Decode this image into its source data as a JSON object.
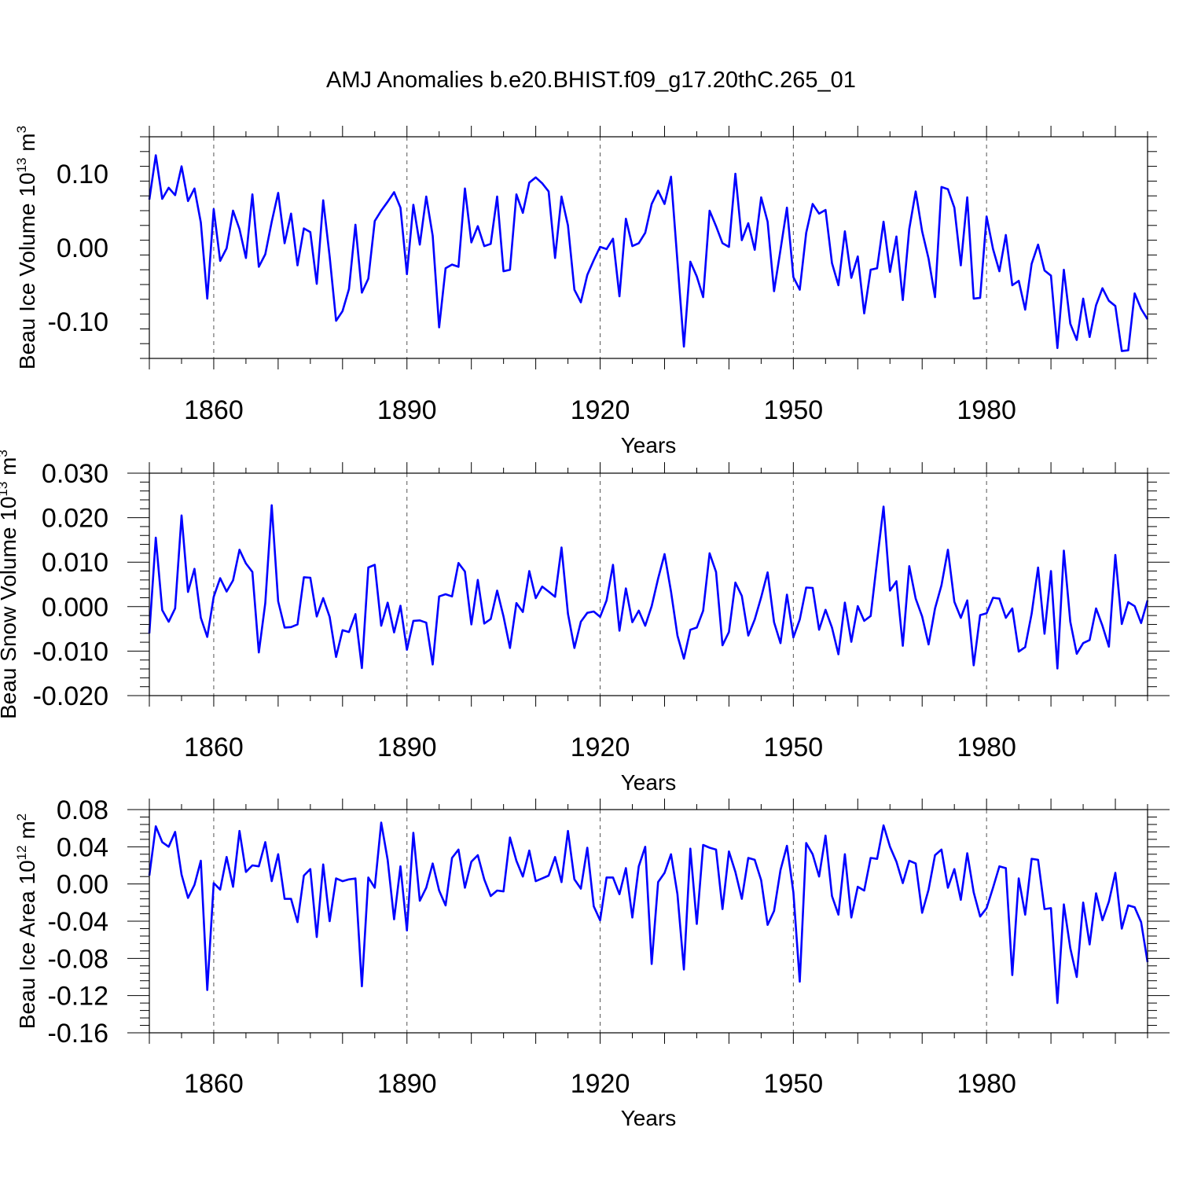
{
  "title": "AMJ Anomalies b.e20.BHIST.f09_g17.20thC.265_01",
  "chart_data": [
    {
      "type": "line",
      "title": "AMJ Anomalies b.e20.BHIST.f09_g17.20thC.265_01",
      "ylabel_prefix": "Beau Ice Volume 10",
      "ylabel_exp": "13",
      "ylabel_unit": " m",
      "ylabel_unit_exp": "3",
      "xlabel": "Years",
      "xlim": [
        1850,
        2005
      ],
      "ylim": [
        -0.15,
        0.15
      ],
      "x_ticks": [
        "1860",
        "1890",
        "1920",
        "1950",
        "1980"
      ],
      "y_ticks": [
        "0.10",
        "0.00",
        "-0.10"
      ],
      "color": "#0000ff",
      "start_year": 1850,
      "values": [
        0.065,
        0.125,
        0.066,
        0.081,
        0.071,
        0.11,
        0.063,
        0.08,
        0.034,
        -0.069,
        0.052,
        -0.018,
        -0.001,
        0.05,
        0.025,
        -0.014,
        0.072,
        -0.026,
        -0.009,
        0.035,
        0.074,
        0.006,
        0.046,
        -0.024,
        0.026,
        0.021,
        -0.049,
        0.064,
        -0.012,
        -0.099,
        -0.086,
        -0.056,
        0.031,
        -0.061,
        -0.042,
        0.036,
        0.05,
        0.062,
        0.075,
        0.054,
        -0.036,
        0.058,
        0.004,
        0.069,
        0.016,
        -0.108,
        -0.028,
        -0.023,
        -0.026,
        0.08,
        0.007,
        0.029,
        0.002,
        0.005,
        0.069,
        -0.032,
        -0.03,
        0.072,
        0.047,
        0.088,
        0.095,
        0.087,
        0.076,
        -0.014,
        0.069,
        0.03,
        -0.057,
        -0.074,
        -0.037,
        -0.017,
        0.001,
        -0.002,
        0.012,
        -0.066,
        0.039,
        0.002,
        0.006,
        0.02,
        0.059,
        0.077,
        0.059,
        0.096,
        -0.019,
        -0.134,
        -0.019,
        -0.039,
        -0.067,
        0.05,
        0.029,
        0.006,
        0.001,
        0.1,
        0.01,
        0.033,
        -0.003,
        0.068,
        0.035,
        -0.059,
        -0.003,
        0.054,
        -0.04,
        -0.057,
        0.02,
        0.059,
        0.046,
        0.051,
        -0.021,
        -0.051,
        0.022,
        -0.041,
        -0.012,
        -0.089,
        -0.03,
        -0.028,
        0.035,
        -0.033,
        0.015,
        -0.071,
        0.025,
        0.076,
        0.022,
        -0.015,
        -0.067,
        0.082,
        0.079,
        0.054,
        -0.024,
        0.068,
        -0.069,
        -0.068,
        0.042,
        -0.002,
        -0.032,
        0.017,
        -0.051,
        -0.045,
        -0.084,
        -0.022,
        0.004,
        -0.031,
        -0.038,
        -0.136,
        -0.03,
        -0.103,
        -0.125,
        -0.069,
        -0.121,
        -0.078,
        -0.055,
        -0.072,
        -0.079,
        -0.14,
        -0.139,
        -0.062,
        -0.083,
        -0.097
      ]
    },
    {
      "type": "line",
      "ylabel_prefix": "Beau Snow Volume 10",
      "ylabel_exp": "13",
      "ylabel_unit": " m",
      "ylabel_unit_exp": "3",
      "xlabel": "Years",
      "xlim": [
        1850,
        2005
      ],
      "ylim": [
        -0.02,
        0.03
      ],
      "x_ticks": [
        "1860",
        "1890",
        "1920",
        "1950",
        "1980"
      ],
      "y_ticks": [
        "0.030",
        "0.020",
        "0.010",
        "0.000",
        "-0.010",
        "-0.020"
      ],
      "color": "#0000ff",
      "start_year": 1850,
      "values": [
        -0.006,
        0.0155,
        -0.0008,
        -0.0034,
        -0.0004,
        0.0205,
        0.0033,
        0.0085,
        -0.0025,
        -0.0068,
        0.0022,
        0.0064,
        0.0034,
        0.0059,
        0.0128,
        0.0097,
        0.0078,
        -0.0103,
        0.0008,
        0.0228,
        0.0012,
        -0.0047,
        -0.0046,
        -0.004,
        0.0066,
        0.0065,
        -0.0022,
        0.0019,
        -0.0023,
        -0.0113,
        -0.0053,
        -0.0057,
        -0.0017,
        -0.0138,
        0.0088,
        0.0094,
        -0.0043,
        0.0009,
        -0.0058,
        0.0002,
        -0.0097,
        -0.0032,
        -0.0031,
        -0.0036,
        -0.013,
        0.0023,
        0.0028,
        0.0023,
        0.0098,
        0.0079,
        -0.004,
        0.006,
        -0.0038,
        -0.0028,
        0.0036,
        -0.0022,
        -0.0093,
        0.0008,
        -0.0012,
        0.008,
        0.0019,
        0.0045,
        0.0034,
        0.0022,
        0.0133,
        -0.0016,
        -0.0093,
        -0.0034,
        -0.0014,
        -0.0011,
        -0.0023,
        0.0014,
        0.0094,
        -0.0054,
        0.0041,
        -0.0035,
        -0.0009,
        -0.0043,
        0.0001,
        0.0063,
        0.0118,
        0.0034,
        -0.0065,
        -0.0117,
        -0.0052,
        -0.0047,
        -0.0009,
        0.012,
        0.0078,
        -0.0087,
        -0.0057,
        0.0054,
        0.0024,
        -0.0065,
        -0.0029,
        0.0021,
        0.0077,
        -0.0035,
        -0.0082,
        0.0027,
        -0.0069,
        -0.0029,
        0.0043,
        0.0042,
        -0.0052,
        -0.0007,
        -0.0047,
        -0.0107,
        0.0009,
        -0.0079,
        0.0001,
        -0.0032,
        -0.0021,
        0.0103,
        0.0225,
        0.0036,
        0.0057,
        -0.0088,
        0.0091,
        0.0018,
        -0.0022,
        -0.0085,
        -0.0004,
        0.0048,
        0.0128,
        0.0011,
        -0.0025,
        0.0014,
        -0.0132,
        -0.0019,
        -0.0015,
        0.002,
        0.0018,
        -0.0025,
        -0.0004,
        -0.0101,
        -0.0091,
        -0.0016,
        0.0088,
        -0.0061,
        0.008,
        -0.0139,
        0.0126,
        -0.0034,
        -0.0106,
        -0.0082,
        -0.0075,
        -0.0004,
        -0.0043,
        -0.009,
        0.0116,
        -0.0039,
        0.001,
        0.0001,
        -0.0037,
        0.0014
      ]
    },
    {
      "type": "line",
      "ylabel_prefix": "Beau Ice Area 10",
      "ylabel_exp": "12",
      "ylabel_unit": " m",
      "ylabel_unit_exp": "2",
      "xlabel": "Years",
      "xlim": [
        1850,
        2005
      ],
      "ylim": [
        -0.16,
        0.08
      ],
      "x_ticks": [
        "1860",
        "1890",
        "1920",
        "1950",
        "1980"
      ],
      "y_ticks": [
        "0.08",
        "0.04",
        "0.00",
        "-0.04",
        "-0.08",
        "-0.12",
        "-0.16"
      ],
      "color": "#0000ff",
      "start_year": 1850,
      "values": [
        0.009,
        0.062,
        0.045,
        0.04,
        0.056,
        0.01,
        -0.015,
        -0.001,
        0.025,
        -0.114,
        0.001,
        -0.006,
        0.029,
        -0.003,
        0.057,
        0.013,
        0.02,
        0.019,
        0.045,
        0.003,
        0.032,
        -0.016,
        -0.016,
        -0.041,
        0.009,
        0.016,
        -0.057,
        0.021,
        -0.04,
        0.006,
        0.003,
        0.005,
        0.006,
        -0.11,
        0.007,
        -0.004,
        0.066,
        0.026,
        -0.038,
        0.019,
        -0.05,
        0.055,
        -0.018,
        -0.004,
        0.022,
        -0.007,
        -0.023,
        0.028,
        0.037,
        -0.004,
        0.024,
        0.031,
        0.005,
        -0.013,
        -0.007,
        -0.008,
        0.05,
        0.025,
        0.008,
        0.036,
        0.003,
        0.006,
        0.009,
        0.029,
        0.002,
        0.057,
        0.005,
        -0.005,
        0.039,
        -0.024,
        -0.039,
        0.007,
        0.007,
        -0.011,
        0.017,
        -0.036,
        0.019,
        0.04,
        -0.086,
        0.002,
        0.012,
        0.032,
        -0.011,
        -0.092,
        0.038,
        -0.043,
        0.042,
        0.039,
        0.037,
        -0.027,
        0.035,
        0.013,
        -0.016,
        0.028,
        0.026,
        0.004,
        -0.044,
        -0.029,
        0.015,
        0.041,
        -0.009,
        -0.105,
        0.044,
        0.032,
        0.008,
        0.052,
        -0.013,
        -0.033,
        0.032,
        -0.036,
        -0.003,
        -0.007,
        0.028,
        0.027,
        0.063,
        0.04,
        0.024,
        0.001,
        0.025,
        0.022,
        -0.031,
        -0.006,
        0.031,
        0.037,
        -0.004,
        0.016,
        -0.017,
        0.033,
        -0.009,
        -0.035,
        -0.026,
        -0.004,
        0.019,
        0.017,
        -0.098,
        0.006,
        -0.033,
        0.027,
        0.026,
        -0.027,
        -0.026,
        -0.128,
        -0.022,
        -0.069,
        -0.1,
        -0.02,
        -0.065,
        -0.01,
        -0.039,
        -0.019,
        0.012,
        -0.048,
        -0.023,
        -0.025,
        -0.041,
        -0.084
      ]
    }
  ]
}
